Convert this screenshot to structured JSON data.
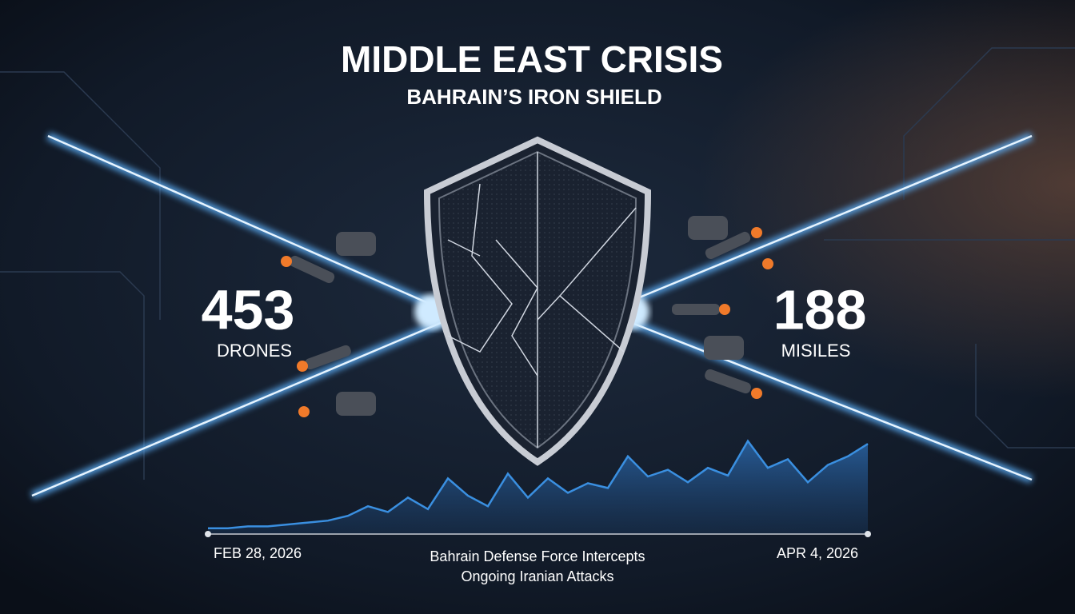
{
  "title": "MIDDLE EAST CRISIS",
  "subtitle": "BAHRAIN’S IRON SHIELD",
  "stats": [
    {
      "value": "453",
      "label": "DRONES"
    },
    {
      "value": "188",
      "label": "MISILES"
    }
  ],
  "caption": [
    "Bahrain Defense Force Intercepts",
    "Ongoing Iranian Attacks"
  ],
  "chart_data": {
    "type": "area",
    "color": "#3a8fe0",
    "categories": [
      "FEB 28, 2026",
      null,
      null,
      null,
      null,
      null,
      null,
      null,
      null,
      null,
      null,
      null,
      null,
      null,
      null,
      null,
      null,
      null,
      null,
      null,
      null,
      null,
      null,
      null,
      null,
      null,
      null,
      null,
      null,
      null,
      null,
      null,
      null,
      "APR 4, 2026"
    ],
    "values": [
      6,
      6,
      8,
      8,
      10,
      12,
      14,
      19,
      29,
      23,
      38,
      26,
      58,
      40,
      29,
      63,
      38,
      58,
      43,
      53,
      48,
      81,
      60,
      67,
      54,
      69,
      61,
      97,
      69,
      78,
      54,
      72,
      81,
      94
    ],
    "ylim": [
      0,
      100
    ]
  }
}
